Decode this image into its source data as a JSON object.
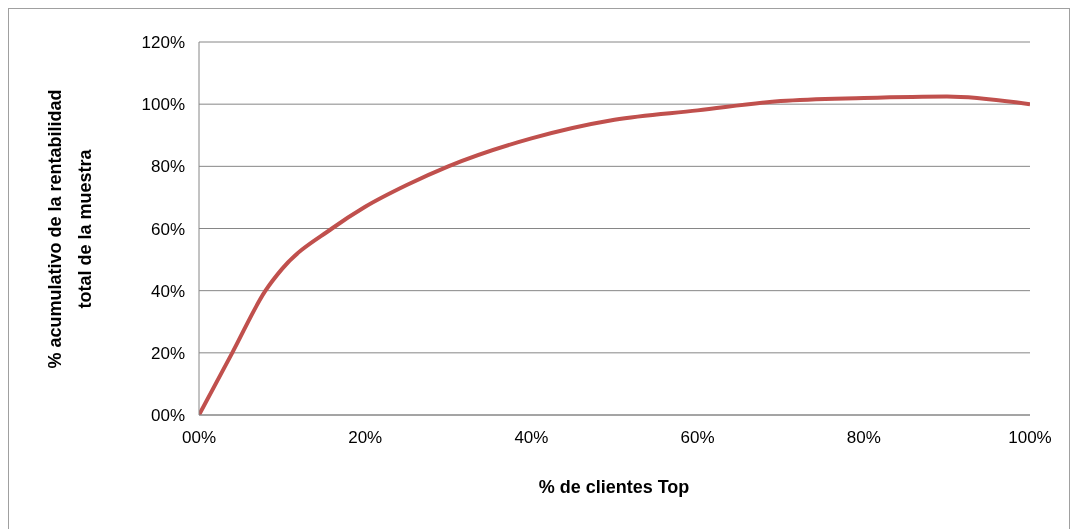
{
  "chart_data": {
    "type": "line",
    "xlabel": "% de clientes Top",
    "ylabel": "% acumulativo de la rentabilidad\ntotal de la muestra",
    "series": [
      {
        "color": "#c0504d",
        "x": [
          0,
          4,
          8,
          10,
          16,
          20,
          25,
          30,
          40,
          50,
          60,
          70,
          80,
          90,
          100
        ],
        "values": [
          0,
          20,
          40,
          47,
          60,
          67,
          74,
          80,
          89,
          95,
          98,
          101,
          102,
          102.5,
          100
        ]
      }
    ],
    "xlim": [
      0,
      100
    ],
    "xticks": [
      {
        "value": 0,
        "label": "00%"
      },
      {
        "value": 20,
        "label": "20%"
      },
      {
        "value": 40,
        "label": "40%"
      },
      {
        "value": 60,
        "label": "60%"
      },
      {
        "value": 80,
        "label": "80%"
      },
      {
        "value": 100,
        "label": "100%"
      }
    ],
    "ylim": [
      0,
      120
    ],
    "yticks": [
      {
        "value": 0,
        "label": "00%"
      },
      {
        "value": 20,
        "label": "20%"
      },
      {
        "value": 40,
        "label": "40%"
      },
      {
        "value": 60,
        "label": "60%"
      },
      {
        "value": 80,
        "label": "80%"
      },
      {
        "value": 100,
        "label": "100%"
      },
      {
        "value": 120,
        "label": "120%"
      }
    ],
    "grid": "y",
    "marker": "none",
    "line_style": "solid"
  }
}
